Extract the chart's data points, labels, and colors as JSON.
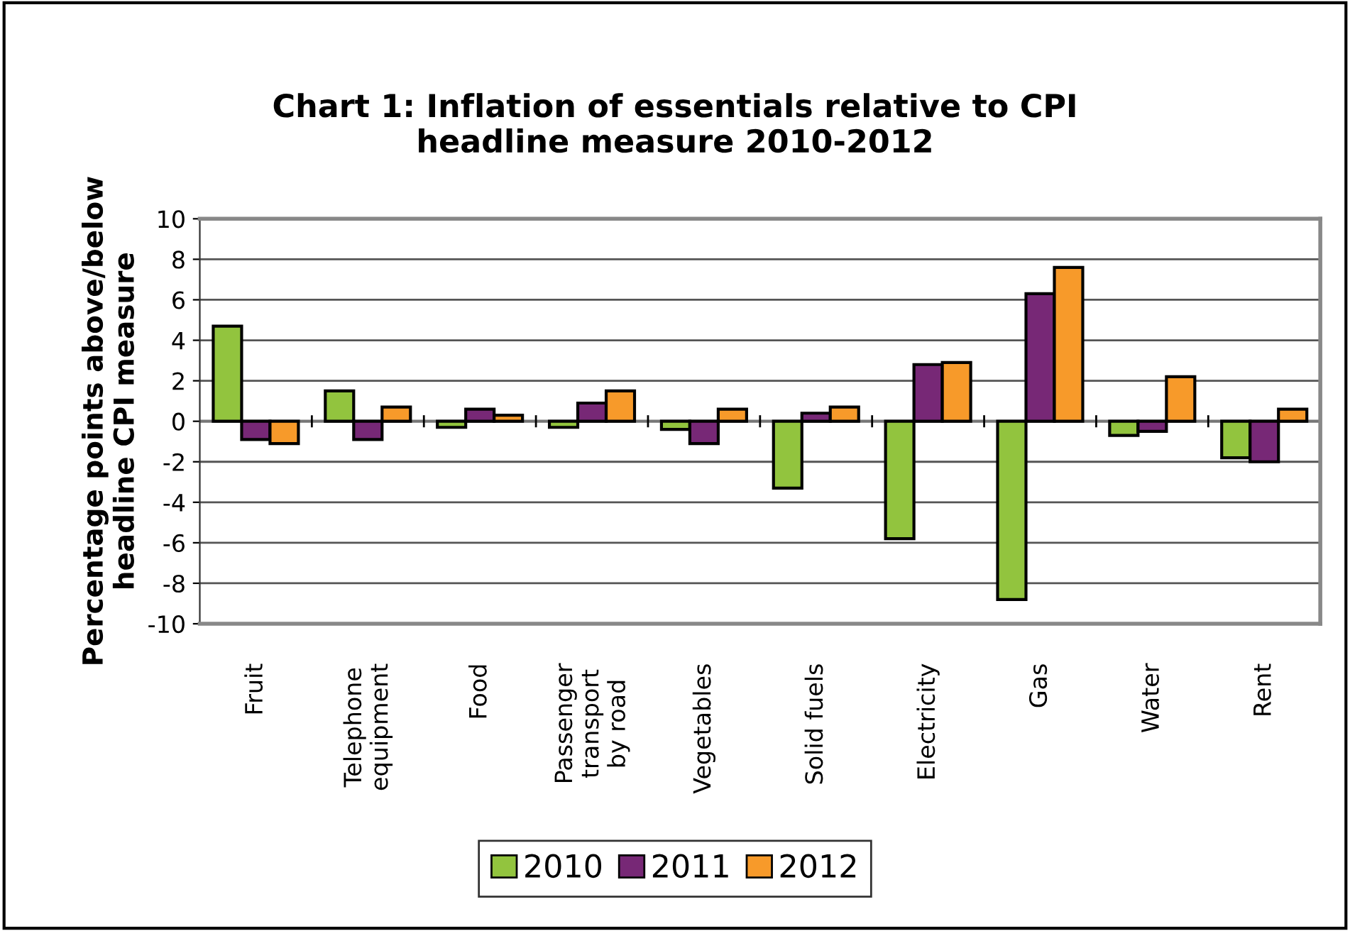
{
  "chart_data": {
    "type": "bar",
    "title": "Chart 1: Inflation of essentials relative to CPI\nheadline measure 2010-2012",
    "ylabel": "Percentage points above/below\nheadline CPI measure",
    "categories": [
      "Fruit",
      "Telephone\nequipment",
      "Food",
      "Passenger\ntransport\nby road",
      "Vegetables",
      "Solid fuels",
      "Electricity",
      "Gas",
      "Water",
      "Rent"
    ],
    "series": [
      {
        "name": "2010",
        "color": "#92c43e",
        "values": [
          4.7,
          1.5,
          -0.3,
          -0.3,
          -0.4,
          -3.3,
          -5.8,
          -8.8,
          -0.7,
          -1.8
        ]
      },
      {
        "name": "2011",
        "color": "#772876",
        "values": [
          -0.9,
          -0.9,
          0.6,
          0.9,
          -1.1,
          0.4,
          2.8,
          6.3,
          -0.5,
          -2.0
        ]
      },
      {
        "name": "2012",
        "color": "#f79a2a",
        "values": [
          -1.1,
          0.7,
          0.3,
          1.5,
          0.6,
          0.7,
          2.9,
          7.6,
          2.2,
          0.6
        ]
      }
    ],
    "ylim": [
      -10,
      10
    ],
    "yticks": [
      -10,
      -8,
      -6,
      -4,
      -2,
      0,
      2,
      4,
      6,
      8,
      10
    ],
    "grid": "y",
    "legend": "bottom"
  }
}
